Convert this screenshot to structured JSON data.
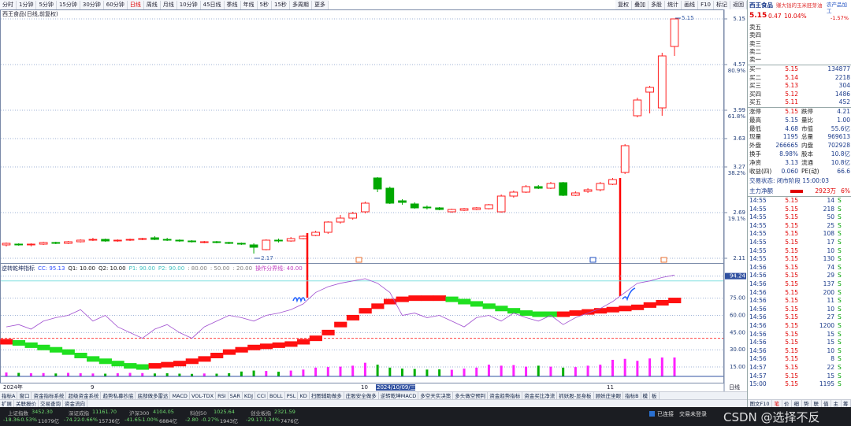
{
  "toolbar": {
    "periods": [
      "分时",
      "1分钟",
      "5分钟",
      "15分钟",
      "30分钟",
      "60分钟",
      "日线",
      "周线",
      "月线",
      "10分钟",
      "45日线",
      "季线",
      "年线",
      "5秒",
      "15秒",
      "多周期",
      "更多"
    ],
    "active_period": "日线",
    "tools": [
      "复权",
      "叠加",
      "多股",
      "统计",
      "画线",
      "F10",
      "标记",
      "返回"
    ]
  },
  "chart_title": "西王食品(日线,前复权)",
  "price_chart": {
    "type": "candlestick",
    "ylim": [
      2.06,
      5.25
    ],
    "yticks": [
      5.15,
      4.57,
      3.99,
      3.63,
      3.27,
      2.69,
      2.11
    ],
    "fib_labels": [
      {
        "value": 4.57,
        "label": "80.9%"
      },
      {
        "value": 3.99,
        "label": "61.8%"
      },
      {
        "value": 3.27,
        "label": "38.2%"
      },
      {
        "value": 2.69,
        "label": "19.1%"
      }
    ],
    "up_color": "#ff2020",
    "down_color": "#00a800",
    "grid": true,
    "annotations": [
      5.15,
      2.17
    ],
    "ohlc": [
      [
        2.28,
        2.31,
        2.26,
        2.3
      ],
      [
        2.29,
        2.3,
        2.27,
        2.28
      ],
      [
        2.28,
        2.3,
        2.26,
        2.29
      ],
      [
        2.29,
        2.32,
        2.28,
        2.31
      ],
      [
        2.31,
        2.32,
        2.29,
        2.3
      ],
      [
        2.3,
        2.33,
        2.29,
        2.32
      ],
      [
        2.32,
        2.35,
        2.31,
        2.34
      ],
      [
        2.34,
        2.37,
        2.33,
        2.35
      ],
      [
        2.35,
        2.36,
        2.32,
        2.33
      ],
      [
        2.33,
        2.35,
        2.32,
        2.34
      ],
      [
        2.34,
        2.36,
        2.33,
        2.35
      ],
      [
        2.35,
        2.37,
        2.34,
        2.36
      ],
      [
        2.37,
        2.39,
        2.34,
        2.35
      ],
      [
        2.35,
        2.37,
        2.33,
        2.34
      ],
      [
        2.34,
        2.35,
        2.32,
        2.33
      ],
      [
        2.33,
        2.34,
        2.31,
        2.32
      ],
      [
        2.31,
        2.33,
        2.3,
        2.32
      ],
      [
        2.32,
        2.33,
        2.3,
        2.31
      ],
      [
        2.31,
        2.32,
        2.29,
        2.3
      ],
      [
        2.3,
        2.31,
        2.28,
        2.29
      ],
      [
        2.28,
        2.3,
        2.17,
        2.25
      ],
      [
        2.22,
        2.35,
        2.21,
        2.34
      ],
      [
        2.34,
        2.36,
        2.31,
        2.33
      ],
      [
        2.33,
        2.38,
        2.32,
        2.36
      ],
      [
        2.36,
        2.4,
        2.35,
        2.39
      ],
      [
        2.4,
        2.46,
        2.39,
        2.44
      ],
      [
        2.44,
        2.58,
        2.42,
        2.57
      ],
      [
        2.57,
        2.66,
        2.55,
        2.62
      ],
      [
        2.62,
        2.7,
        2.6,
        2.68
      ],
      [
        2.7,
        2.83,
        2.68,
        2.81
      ],
      [
        3.13,
        3.14,
        2.95,
        2.99
      ],
      [
        3.0,
        3.02,
        2.8,
        2.81
      ],
      [
        2.84,
        2.86,
        2.79,
        2.82
      ],
      [
        2.8,
        2.82,
        2.74,
        2.75
      ],
      [
        2.76,
        2.78,
        2.73,
        2.75
      ],
      [
        2.75,
        2.76,
        2.72,
        2.73
      ],
      [
        2.7,
        2.74,
        2.69,
        2.73
      ],
      [
        2.72,
        2.75,
        2.71,
        2.74
      ],
      [
        2.73,
        2.76,
        2.72,
        2.75
      ],
      [
        2.74,
        2.8,
        2.73,
        2.79
      ],
      [
        2.7,
        2.92,
        2.69,
        2.9
      ],
      [
        2.9,
        2.97,
        2.88,
        2.95
      ],
      [
        2.95,
        3.04,
        2.94,
        3.02
      ],
      [
        3.02,
        3.04,
        2.99,
        3.0
      ],
      [
        3.0,
        3.08,
        2.99,
        3.06
      ],
      [
        3.07,
        3.08,
        2.9,
        2.91
      ],
      [
        2.91,
        2.96,
        2.9,
        2.94
      ],
      [
        2.96,
        3.0,
        2.94,
        2.98
      ],
      [
        2.98,
        3.08,
        2.96,
        3.06
      ],
      [
        3.05,
        3.13,
        3.04,
        3.11
      ],
      [
        3.2,
        3.56,
        3.18,
        3.54
      ],
      [
        3.92,
        4.15,
        3.9,
        4.12
      ],
      [
        4.22,
        4.3,
        3.95,
        4.28
      ],
      [
        4.02,
        4.72,
        3.92,
        4.68
      ],
      [
        4.8,
        5.15,
        4.68,
        5.15
      ]
    ],
    "volumes": [
      20,
      18,
      16,
      17,
      15,
      18,
      16,
      15,
      14,
      16,
      18,
      17,
      15,
      16,
      14,
      13,
      15,
      14,
      16,
      25,
      30,
      28,
      24,
      30,
      35,
      45,
      48,
      50,
      55,
      70,
      60,
      45,
      40,
      38,
      35,
      36,
      34,
      40,
      45,
      60,
      55,
      58,
      50,
      55,
      50,
      45,
      48,
      55,
      60,
      85,
      90,
      80,
      92,
      96.96,
      96.96
    ]
  },
  "indicator": {
    "type": "line",
    "title": "逆转乾坤指标",
    "legend": [
      {
        "text": "CC: 95.13",
        "color": "#3050ff"
      },
      {
        "text": "Q1: 10.00",
        "color": "#202020"
      },
      {
        "text": "Q2: 10.00",
        "color": "#202020"
      },
      {
        "text": "P1: 90.00",
        "color": "#40c0c0"
      },
      {
        "text": "P2: 90.00",
        "color": "#40c0c0"
      },
      {
        "text": ": 80.00",
        "color": "#808080"
      },
      {
        "text": ": 50.00",
        "color": "#808080"
      },
      {
        "text": ": 20.00",
        "color": "#808080"
      },
      {
        "text": "操作分界线: 40.00",
        "color": "#c040c0"
      }
    ],
    "ylim": [
      6.8,
      103.6
    ],
    "yticks": [
      94.24,
      {
        "value": 75,
        "label": "75.00"
      },
      {
        "value": 60,
        "label": "60.00"
      },
      {
        "value": 45,
        "label": "45.00"
      },
      {
        "value": 30,
        "label": "30.00"
      },
      {
        "value": 15,
        "label": "15.00"
      }
    ],
    "levels": [
      {
        "value": 90,
        "color": "#80e0e0"
      },
      {
        "value": 40,
        "color": "#ff4040"
      }
    ],
    "cc_color": "#a050d0",
    "cc": [
      50,
      52,
      48,
      55,
      58,
      60,
      65,
      55,
      60,
      50,
      45,
      40,
      48,
      52,
      45,
      40,
      50,
      55,
      60,
      58,
      55,
      60,
      62,
      65,
      70,
      80,
      85,
      88,
      90,
      92,
      88,
      80,
      60,
      62,
      58,
      60,
      55,
      50,
      58,
      60,
      55,
      62,
      58,
      55,
      60,
      52,
      58,
      62,
      66,
      72,
      80,
      88,
      90,
      93,
      95.13
    ],
    "trend": [
      37,
      36,
      34,
      32,
      30,
      28,
      25,
      22,
      20,
      18,
      16,
      15,
      16,
      17,
      18,
      20,
      22,
      25,
      28,
      30,
      32,
      33,
      34,
      35,
      37,
      40,
      45,
      52,
      58,
      64,
      68,
      72,
      74,
      75,
      75,
      75,
      74,
      72,
      70,
      68,
      66,
      64,
      62,
      61,
      61,
      61,
      62,
      63,
      64,
      65,
      66,
      67,
      69,
      71,
      73
    ]
  },
  "x_axis": [
    "2024年",
    "9",
    "10",
    "2024/10/09/三",
    "11",
    "日线"
  ],
  "tabs_row1": [
    "指标A",
    "窗口",
    "资金指标系统",
    "超级资金系统",
    "趋势私募抄底",
    "底部做多雷达",
    "MACD",
    "VOL-TDX",
    "RSI",
    "SAR",
    "KDJ",
    "CCI",
    "BOLL",
    "PSL",
    "KD",
    "扫图辅助做多",
    "庄股安全做多",
    "逆转乾坤MACD",
    "多空天实决策",
    "多头做空预判",
    "资金趋势指标",
    "资金买比净流",
    "抓妖股-显身板",
    "顾妖庄坐眼",
    "指标B",
    "模",
    "板"
  ],
  "tabs_row2": [
    "扩展",
    "关联报价",
    "交易查询",
    "资金流向"
  ],
  "quote": {
    "name": "西王食品",
    "slogan": "赚大钱的玉米胚芽油",
    "industry": "农产品加工",
    "price": "5.15",
    "change": "0.47",
    "pct": "10.04%",
    "industry_pct": "-1.57%",
    "asks": [
      "卖五",
      "卖四",
      "卖三",
      "卖二",
      "卖一"
    ],
    "bids": [
      [
        "买一",
        5.15,
        134877
      ],
      [
        "买二",
        5.14,
        2218
      ],
      [
        "买三",
        5.13,
        304
      ],
      [
        "买四",
        5.12,
        1486
      ],
      [
        "买五",
        5.11,
        452
      ]
    ],
    "stats": [
      [
        "涨停",
        "5.15",
        "跌停",
        "4.21"
      ],
      [
        "最高",
        "5.15",
        "量比",
        "1.00"
      ],
      [
        "最低",
        "4.68",
        "市值",
        "55.6亿"
      ],
      [
        "现量",
        "1195",
        "总量",
        "969613"
      ],
      [
        "外盘",
        "266665",
        "内盘",
        "702928"
      ],
      [
        "换手",
        "8.98%",
        "股本",
        "10.8亿"
      ],
      [
        "净资",
        "3.13",
        "流通",
        "10.8亿"
      ],
      [
        "收益(四)",
        "0.060",
        "PE(动)",
        "66.6"
      ]
    ],
    "status": "交易状态: 闭市阶段 15:00:03",
    "main_flow": [
      "主力净额",
      "2923万",
      "6%"
    ],
    "ticks": [
      [
        "14:55",
        5.15,
        14,
        "S"
      ],
      [
        "14:55",
        5.15,
        218,
        "S"
      ],
      [
        "14:55",
        5.15,
        50,
        "S"
      ],
      [
        "14:55",
        5.15,
        25,
        "S"
      ],
      [
        "14:55",
        5.15,
        108,
        "S"
      ],
      [
        "14:55",
        5.15,
        17,
        "S"
      ],
      [
        "14:55",
        5.15,
        10,
        "S"
      ],
      [
        "14:55",
        5.15,
        130,
        "S"
      ],
      [
        "14:56",
        5.15,
        74,
        "S"
      ],
      [
        "14:56",
        5.15,
        29,
        "S"
      ],
      [
        "14:56",
        5.15,
        137,
        "S"
      ],
      [
        "14:56",
        5.15,
        200,
        "S"
      ],
      [
        "14:56",
        5.15,
        11,
        "S"
      ],
      [
        "14:56",
        5.15,
        10,
        "S"
      ],
      [
        "14:56",
        5.15,
        27,
        "S"
      ],
      [
        "14:56",
        5.15,
        1200,
        "S"
      ],
      [
        "14:56",
        5.15,
        15,
        "S"
      ],
      [
        "14:56",
        5.15,
        15,
        "S"
      ],
      [
        "14:56",
        5.15,
        10,
        "S"
      ],
      [
        "14:56",
        5.15,
        8,
        "S"
      ],
      [
        "14:57",
        5.15,
        22,
        "S"
      ],
      [
        "14:57",
        5.15,
        15,
        "S"
      ],
      [
        "15:00",
        5.15,
        1195,
        "S"
      ]
    ],
    "footer": [
      "图文F10",
      "笔",
      "价",
      "细",
      "势",
      "联",
      "值",
      "主",
      "筹"
    ]
  },
  "status_bar": {
    "indices": [
      [
        "上证指数",
        "3452.30",
        "-18.36",
        "-0.53%",
        "11079亿"
      ],
      [
        "深证成指",
        "11161.70",
        "-74.22",
        "-0.66%",
        "15736亿"
      ],
      [
        "沪深300",
        "4104.05",
        "-41.65",
        "-1.00%",
        "6884亿"
      ],
      [
        "科创50",
        "1025.64",
        "-2.80",
        "-0.27%",
        "1943亿"
      ],
      [
        "创业板指",
        "2321.59",
        "-29.17",
        "-1.24%",
        "7476亿"
      ]
    ],
    "connection": "已连接",
    "login": "交易未登录",
    "watermark": "CSDN @选择不反"
  }
}
